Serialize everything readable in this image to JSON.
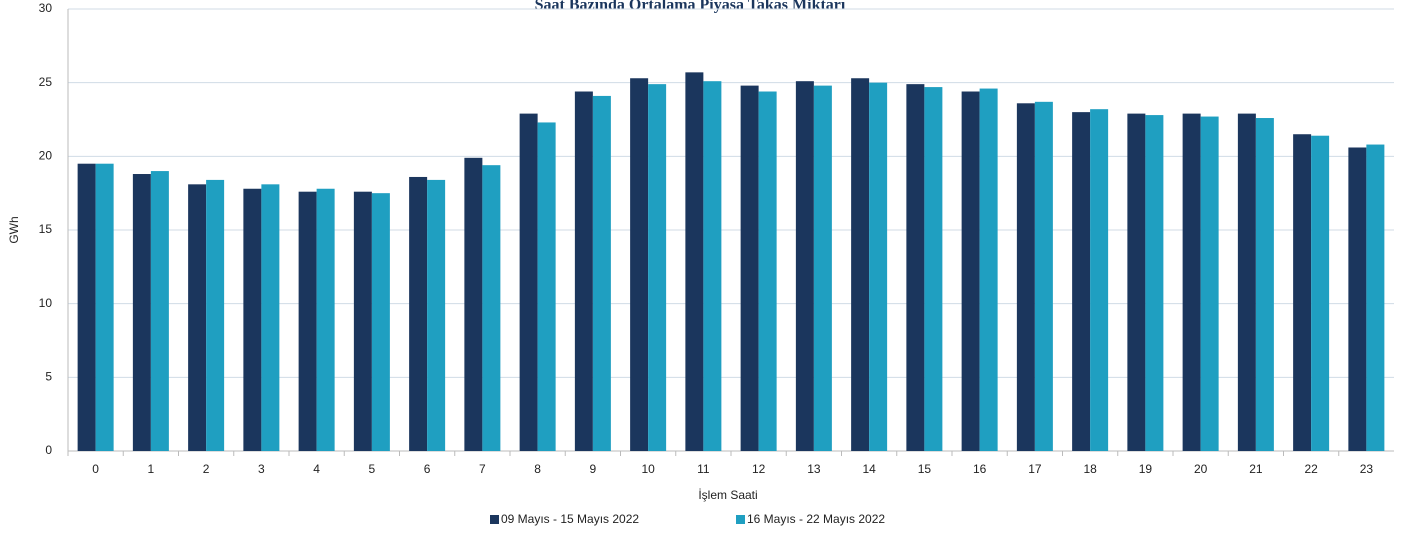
{
  "chart_data": {
    "type": "bar",
    "title": "Saat Bazında Ortalama Piyasa Takas Miktarı",
    "y_label": "GWh",
    "x_label": "İşlem Saati",
    "categories": [
      "0",
      "1",
      "2",
      "3",
      "4",
      "5",
      "6",
      "7",
      "8",
      "9",
      "10",
      "11",
      "12",
      "13",
      "14",
      "15",
      "16",
      "17",
      "18",
      "19",
      "20",
      "21",
      "22",
      "23"
    ],
    "series": [
      {
        "name": "09 Mayıs - 15 Mayıs 2022",
        "color": "#1b365d",
        "values": [
          19.5,
          18.8,
          18.1,
          17.8,
          17.6,
          17.6,
          18.6,
          19.9,
          22.9,
          24.4,
          25.3,
          25.7,
          24.8,
          25.1,
          25.3,
          24.9,
          24.4,
          23.6,
          23.0,
          22.9,
          22.9,
          22.9,
          21.5,
          20.6
        ]
      },
      {
        "name": "16 Mayıs - 22 Mayıs 2022",
        "color": "#1f9fc1",
        "values": [
          19.5,
          19.0,
          18.4,
          18.1,
          17.8,
          17.5,
          18.4,
          19.4,
          22.3,
          24.1,
          24.9,
          25.1,
          24.4,
          24.8,
          25.0,
          24.7,
          24.6,
          23.7,
          23.2,
          22.8,
          22.7,
          22.6,
          21.4,
          20.8
        ]
      }
    ],
    "ylim": [
      0,
      30
    ],
    "yticks": [
      0,
      5,
      10,
      15,
      20,
      25,
      30
    ],
    "grid": true
  }
}
